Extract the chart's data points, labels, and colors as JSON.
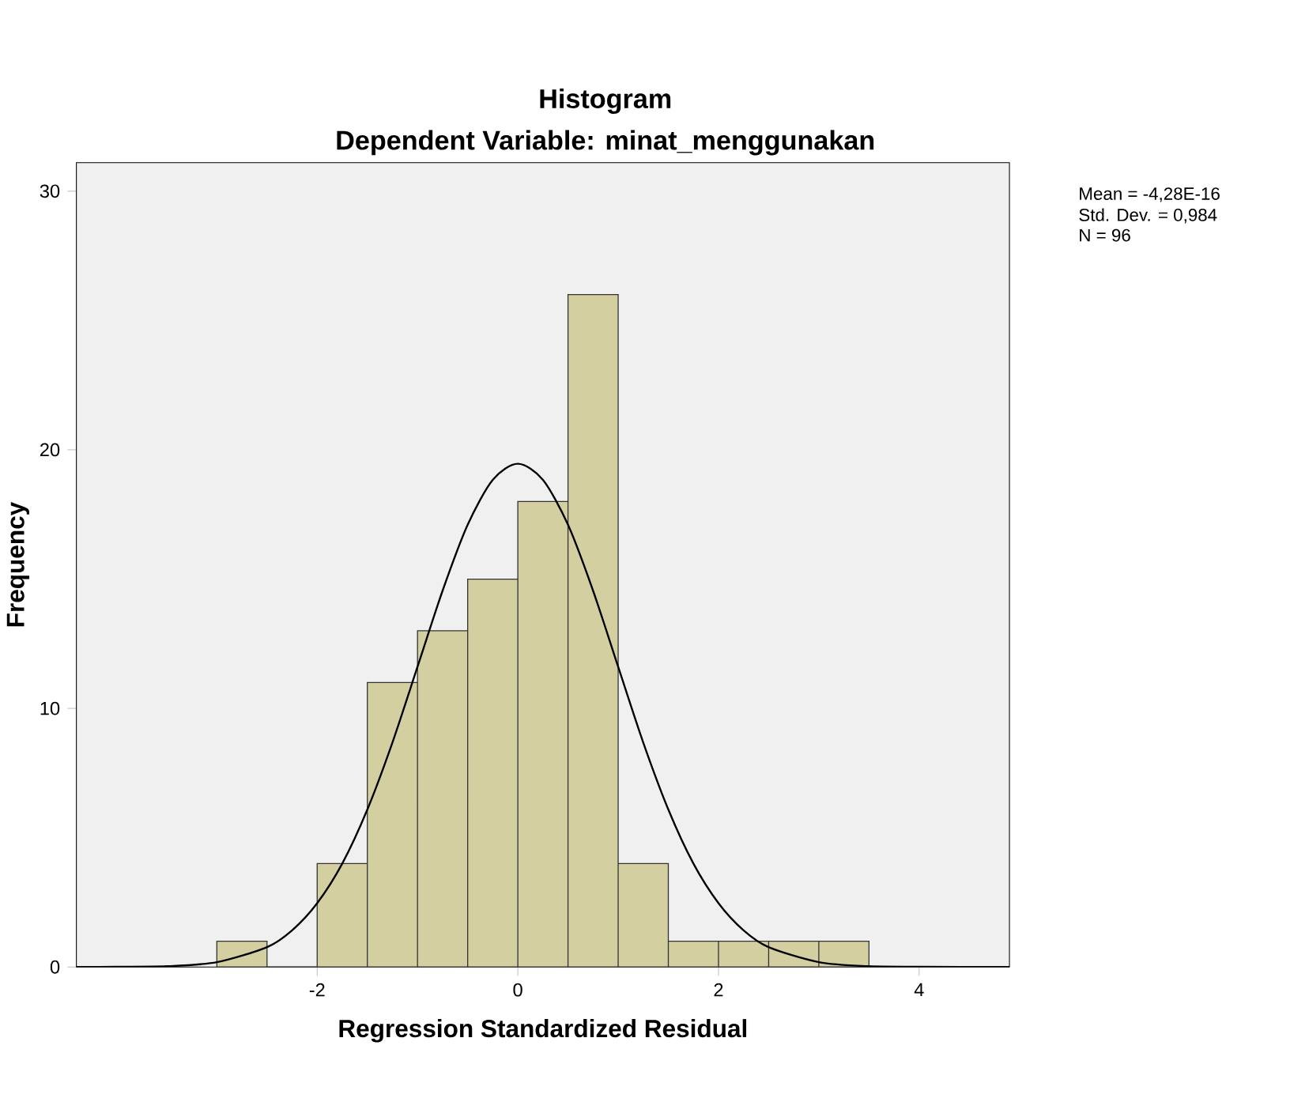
{
  "chart_data": {
    "type": "histogram",
    "title": "Histogram",
    "subtitle": "Dependent Variable: minat_menggunakan",
    "xlabel": "Regression Standardized Residual",
    "ylabel": "Frequency",
    "xlim": [
      -4.4,
      4.9
    ],
    "ylim": [
      0,
      31.1
    ],
    "xticks": [
      -2,
      0,
      2,
      4
    ],
    "yticks": [
      0,
      10,
      20,
      30
    ],
    "series": [
      {
        "type": "histogram",
        "color": "#d4cfa1",
        "bins": [
          -3,
          -2.5,
          -2,
          -1.5,
          -1,
          -0.5,
          0,
          0.5,
          1,
          1.5,
          2,
          2.5,
          3,
          3.5
        ],
        "values": [
          1,
          0,
          4,
          11,
          13,
          15,
          18,
          26,
          4,
          1,
          1,
          1,
          1
        ]
      },
      {
        "type": "line",
        "color": "#000000",
        "x": [
          -4.4,
          -4,
          -3.5,
          -3,
          -2.5,
          -2.25,
          -2,
          -1.75,
          -1.5,
          -1.25,
          -1,
          -0.75,
          -0.5,
          -0.25,
          0,
          0.25,
          0.5,
          0.75,
          1,
          1.25,
          1.5,
          1.75,
          2,
          2.25,
          2.5,
          3,
          3.5,
          4,
          4.9
        ],
        "values": [
          0,
          0.01,
          0.03,
          0.19,
          0.77,
          1.42,
          2.47,
          4.0,
          6.09,
          8.68,
          11.61,
          14.55,
          17.1,
          18.84,
          19.46,
          18.84,
          17.1,
          14.55,
          11.61,
          8.68,
          6.09,
          4.0,
          2.47,
          1.42,
          0.77,
          0.19,
          0.03,
          0.01,
          0
        ]
      }
    ],
    "annotations": [
      "Mean = -4,28E-16",
      "Std. Dev. = 0,984",
      "N = 96"
    ]
  }
}
